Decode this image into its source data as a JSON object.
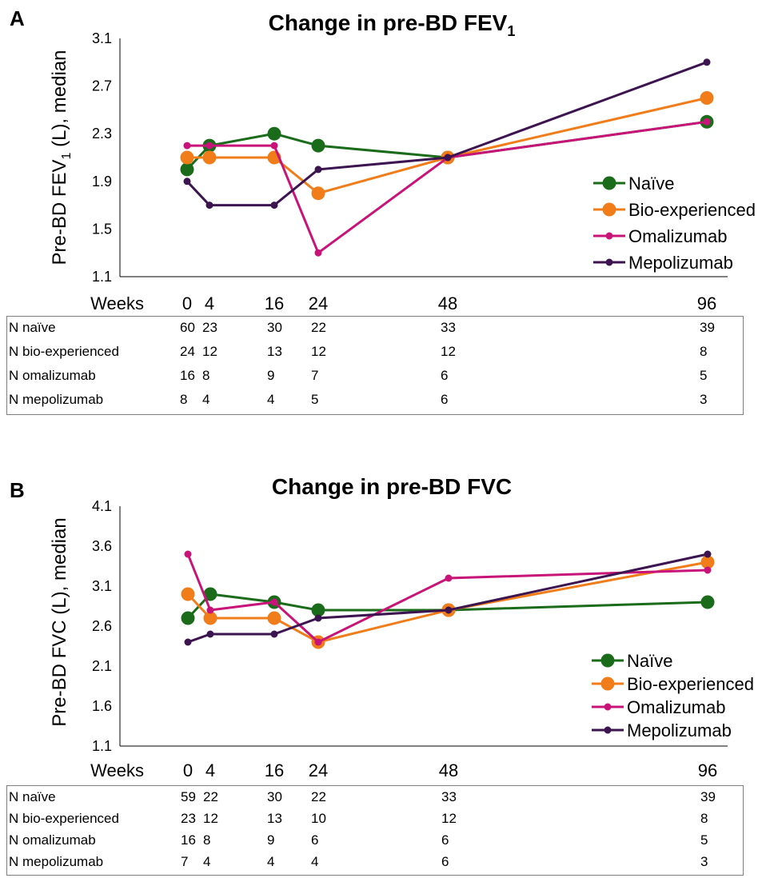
{
  "panels": [
    {
      "letter": "A",
      "title": "Change in pre-BD FEV",
      "title_sub": "1",
      "ylabel": "Pre-BD FEV",
      "ylabel_sub": "1",
      "ylabel_rest": " (L), median"
    },
    {
      "letter": "B",
      "title": "Change in pre-BD FVC",
      "title_sub": "",
      "ylabel": "Pre-BD FVC (L), median",
      "ylabel_sub": "",
      "ylabel_rest": ""
    }
  ],
  "chart_data": [
    {
      "type": "line",
      "title": "Change in pre-BD FEV1",
      "xlabel": "Weeks",
      "ylabel": "Pre-BD FEV1 (L), median",
      "x": [
        0,
        4,
        16,
        24,
        48,
        96
      ],
      "yticks": [
        1.1,
        1.5,
        1.9,
        2.3,
        2.7,
        3.1
      ],
      "ylim": [
        1.1,
        3.1
      ],
      "legend_position": "right",
      "series": [
        {
          "name": "Naïve",
          "color": "#1a6b1a",
          "marker": "large",
          "values": [
            2.0,
            2.2,
            2.3,
            2.2,
            2.1,
            2.4
          ]
        },
        {
          "name": "Bio-experienced",
          "color": "#f07d19",
          "marker": "large",
          "values": [
            2.1,
            2.1,
            2.1,
            1.8,
            2.1,
            2.6
          ]
        },
        {
          "name": "Omalizumab",
          "color": "#c81478",
          "marker": "small",
          "values": [
            2.2,
            2.2,
            2.2,
            1.3,
            2.1,
            2.4
          ]
        },
        {
          "name": "Mepolizumab",
          "color": "#3c1450",
          "marker": "small",
          "values": [
            1.9,
            1.7,
            1.7,
            2.0,
            2.1,
            2.9
          ]
        }
      ],
      "n_table": {
        "header": "Weeks",
        "rows": [
          {
            "label": "N naïve",
            "values": [
              "60",
              "23",
              "30",
              "22",
              "33",
              "39"
            ]
          },
          {
            "label": "N bio-experienced",
            "values": [
              "24",
              "12",
              "13",
              "12",
              "12",
              "8"
            ]
          },
          {
            "label": "N omalizumab",
            "values": [
              "16",
              "8",
              "9",
              "7",
              "6",
              "5"
            ]
          },
          {
            "label": "N mepolizumab",
            "values": [
              "8",
              "4",
              "4",
              "5",
              "6",
              "3"
            ]
          }
        ]
      }
    },
    {
      "type": "line",
      "title": "Change in pre-BD FVC",
      "xlabel": "Weeks",
      "ylabel": "Pre-BD FVC (L), median",
      "x": [
        0,
        4,
        16,
        24,
        48,
        96
      ],
      "yticks": [
        1.1,
        1.6,
        2.1,
        2.6,
        3.1,
        3.6,
        4.1
      ],
      "ylim": [
        1.1,
        4.1
      ],
      "legend_position": "right",
      "series": [
        {
          "name": "Naïve",
          "color": "#1a6b1a",
          "marker": "large",
          "values": [
            2.7,
            3.0,
            2.9,
            2.8,
            2.8,
            2.9
          ]
        },
        {
          "name": "Bio-experienced",
          "color": "#f07d19",
          "marker": "large",
          "values": [
            3.0,
            2.7,
            2.7,
            2.4,
            2.8,
            3.4
          ]
        },
        {
          "name": "Omalizumab",
          "color": "#c81478",
          "marker": "small",
          "values": [
            3.5,
            2.8,
            2.9,
            2.4,
            3.2,
            3.3
          ]
        },
        {
          "name": "Mepolizumab",
          "color": "#3c1450",
          "marker": "small",
          "values": [
            2.4,
            2.5,
            2.5,
            2.7,
            2.8,
            3.5
          ]
        }
      ],
      "n_table": {
        "header": "Weeks",
        "rows": [
          {
            "label": "N naïve",
            "values": [
              "59",
              "22",
              "30",
              "22",
              "33",
              "39"
            ]
          },
          {
            "label": "N bio-experienced",
            "values": [
              "23",
              "12",
              "13",
              "10",
              "12",
              "8"
            ]
          },
          {
            "label": "N omalizumab",
            "values": [
              "16",
              "8",
              "9",
              "6",
              "6",
              "5"
            ]
          },
          {
            "label": "N mepolizumab",
            "values": [
              "7",
              "4",
              "4",
              "4",
              "6",
              "3"
            ]
          }
        ]
      }
    }
  ]
}
